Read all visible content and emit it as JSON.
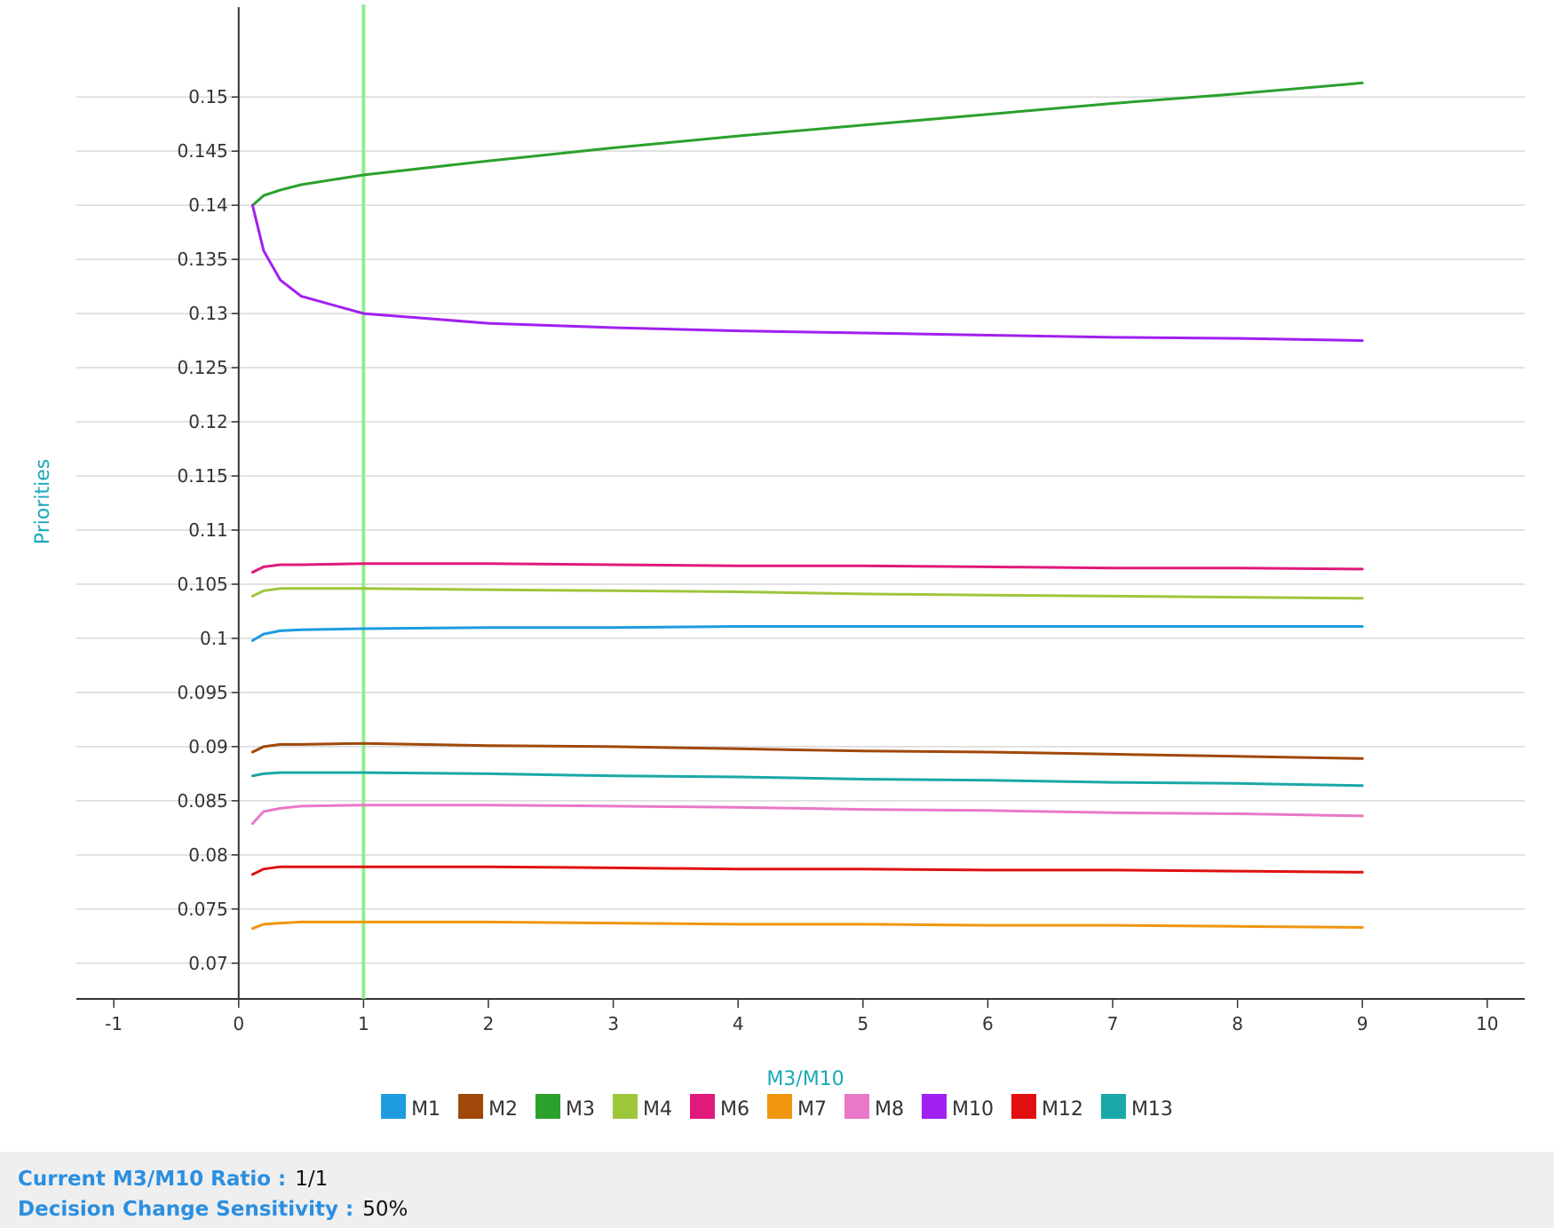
{
  "chart_data": {
    "type": "line",
    "xlabel": "M3/M10",
    "ylabel": "Priorities",
    "xlim": [
      -1.3,
      10.3
    ],
    "ylim": [
      0.0667,
      0.1583
    ],
    "x_ticks": [
      -1,
      0,
      1,
      2,
      3,
      4,
      5,
      6,
      7,
      8,
      9,
      10
    ],
    "y_ticks": [
      0.07,
      0.075,
      0.08,
      0.085,
      0.09,
      0.095,
      0.1,
      0.105,
      0.11,
      0.115,
      0.12,
      0.125,
      0.13,
      0.135,
      0.14,
      0.145,
      0.15
    ],
    "grid": "horizontal",
    "legend_position": "bottom",
    "current_marker": {
      "x": 1,
      "color": "#90ee90"
    },
    "x": [
      0.111,
      0.2,
      0.333,
      0.5,
      1,
      2,
      3,
      4,
      5,
      6,
      7,
      8,
      9
    ],
    "series": [
      {
        "name": "M1",
        "color": "#1f9be0",
        "values": [
          0.0998,
          0.1004,
          0.1007,
          0.1008,
          0.1009,
          0.101,
          0.101,
          0.1011,
          0.1011,
          0.1011,
          0.1011,
          0.1011,
          0.1011
        ]
      },
      {
        "name": "M2",
        "color": "#a0480a",
        "values": [
          0.0895,
          0.09,
          0.0902,
          0.0902,
          0.0903,
          0.0901,
          0.09,
          0.0898,
          0.0896,
          0.0895,
          0.0893,
          0.0891,
          0.0889
        ]
      },
      {
        "name": "M3",
        "color": "#2ca02c",
        "values": [
          0.14,
          0.1409,
          0.1414,
          0.1419,
          0.1428,
          0.1441,
          0.1453,
          0.1464,
          0.1474,
          0.1484,
          0.1494,
          0.1503,
          0.1513
        ]
      },
      {
        "name": "M4",
        "color": "#9dc63b",
        "values": [
          0.1039,
          0.1044,
          0.1046,
          0.1046,
          0.1046,
          0.1045,
          0.1044,
          0.1043,
          0.1041,
          0.104,
          0.1039,
          0.1038,
          0.1037
        ]
      },
      {
        "name": "M6",
        "color": "#e0197a",
        "values": [
          0.1061,
          0.1066,
          0.1068,
          0.1068,
          0.1069,
          0.1069,
          0.1068,
          0.1067,
          0.1067,
          0.1066,
          0.1065,
          0.1065,
          0.1064
        ]
      },
      {
        "name": "M7",
        "color": "#f0960f",
        "values": [
          0.0732,
          0.0736,
          0.0737,
          0.0738,
          0.0738,
          0.0738,
          0.0737,
          0.0736,
          0.0736,
          0.0735,
          0.0735,
          0.0734,
          0.0733
        ]
      },
      {
        "name": "M8",
        "color": "#e878c8",
        "values": [
          0.0829,
          0.084,
          0.0843,
          0.0845,
          0.0846,
          0.0846,
          0.0845,
          0.0844,
          0.0842,
          0.0841,
          0.0839,
          0.0838,
          0.0836
        ]
      },
      {
        "name": "M10",
        "color": "#a020f0",
        "values": [
          0.14,
          0.1358,
          0.1331,
          0.1316,
          0.13,
          0.1291,
          0.1287,
          0.1284,
          0.1282,
          0.128,
          0.1278,
          0.1277,
          0.1275
        ]
      },
      {
        "name": "M12",
        "color": "#e01010",
        "values": [
          0.0782,
          0.0787,
          0.0789,
          0.0789,
          0.0789,
          0.0789,
          0.0788,
          0.0787,
          0.0787,
          0.0786,
          0.0786,
          0.0785,
          0.0784
        ]
      },
      {
        "name": "M13",
        "color": "#1aa8a8",
        "values": [
          0.0873,
          0.0875,
          0.0876,
          0.0876,
          0.0876,
          0.0875,
          0.0873,
          0.0872,
          0.087,
          0.0869,
          0.0867,
          0.0866,
          0.0864
        ]
      }
    ]
  },
  "info": {
    "ratio_label": "Current M3/M10 Ratio :",
    "ratio_value": "1/1",
    "sensitivity_label": "Decision Change Sensitivity :",
    "sensitivity_value": "50%"
  },
  "colors": {
    "axis_title": "#1aa8b8",
    "info_label": "#2b8fe0",
    "grid": "#d8d8d8",
    "axis": "#333333"
  }
}
